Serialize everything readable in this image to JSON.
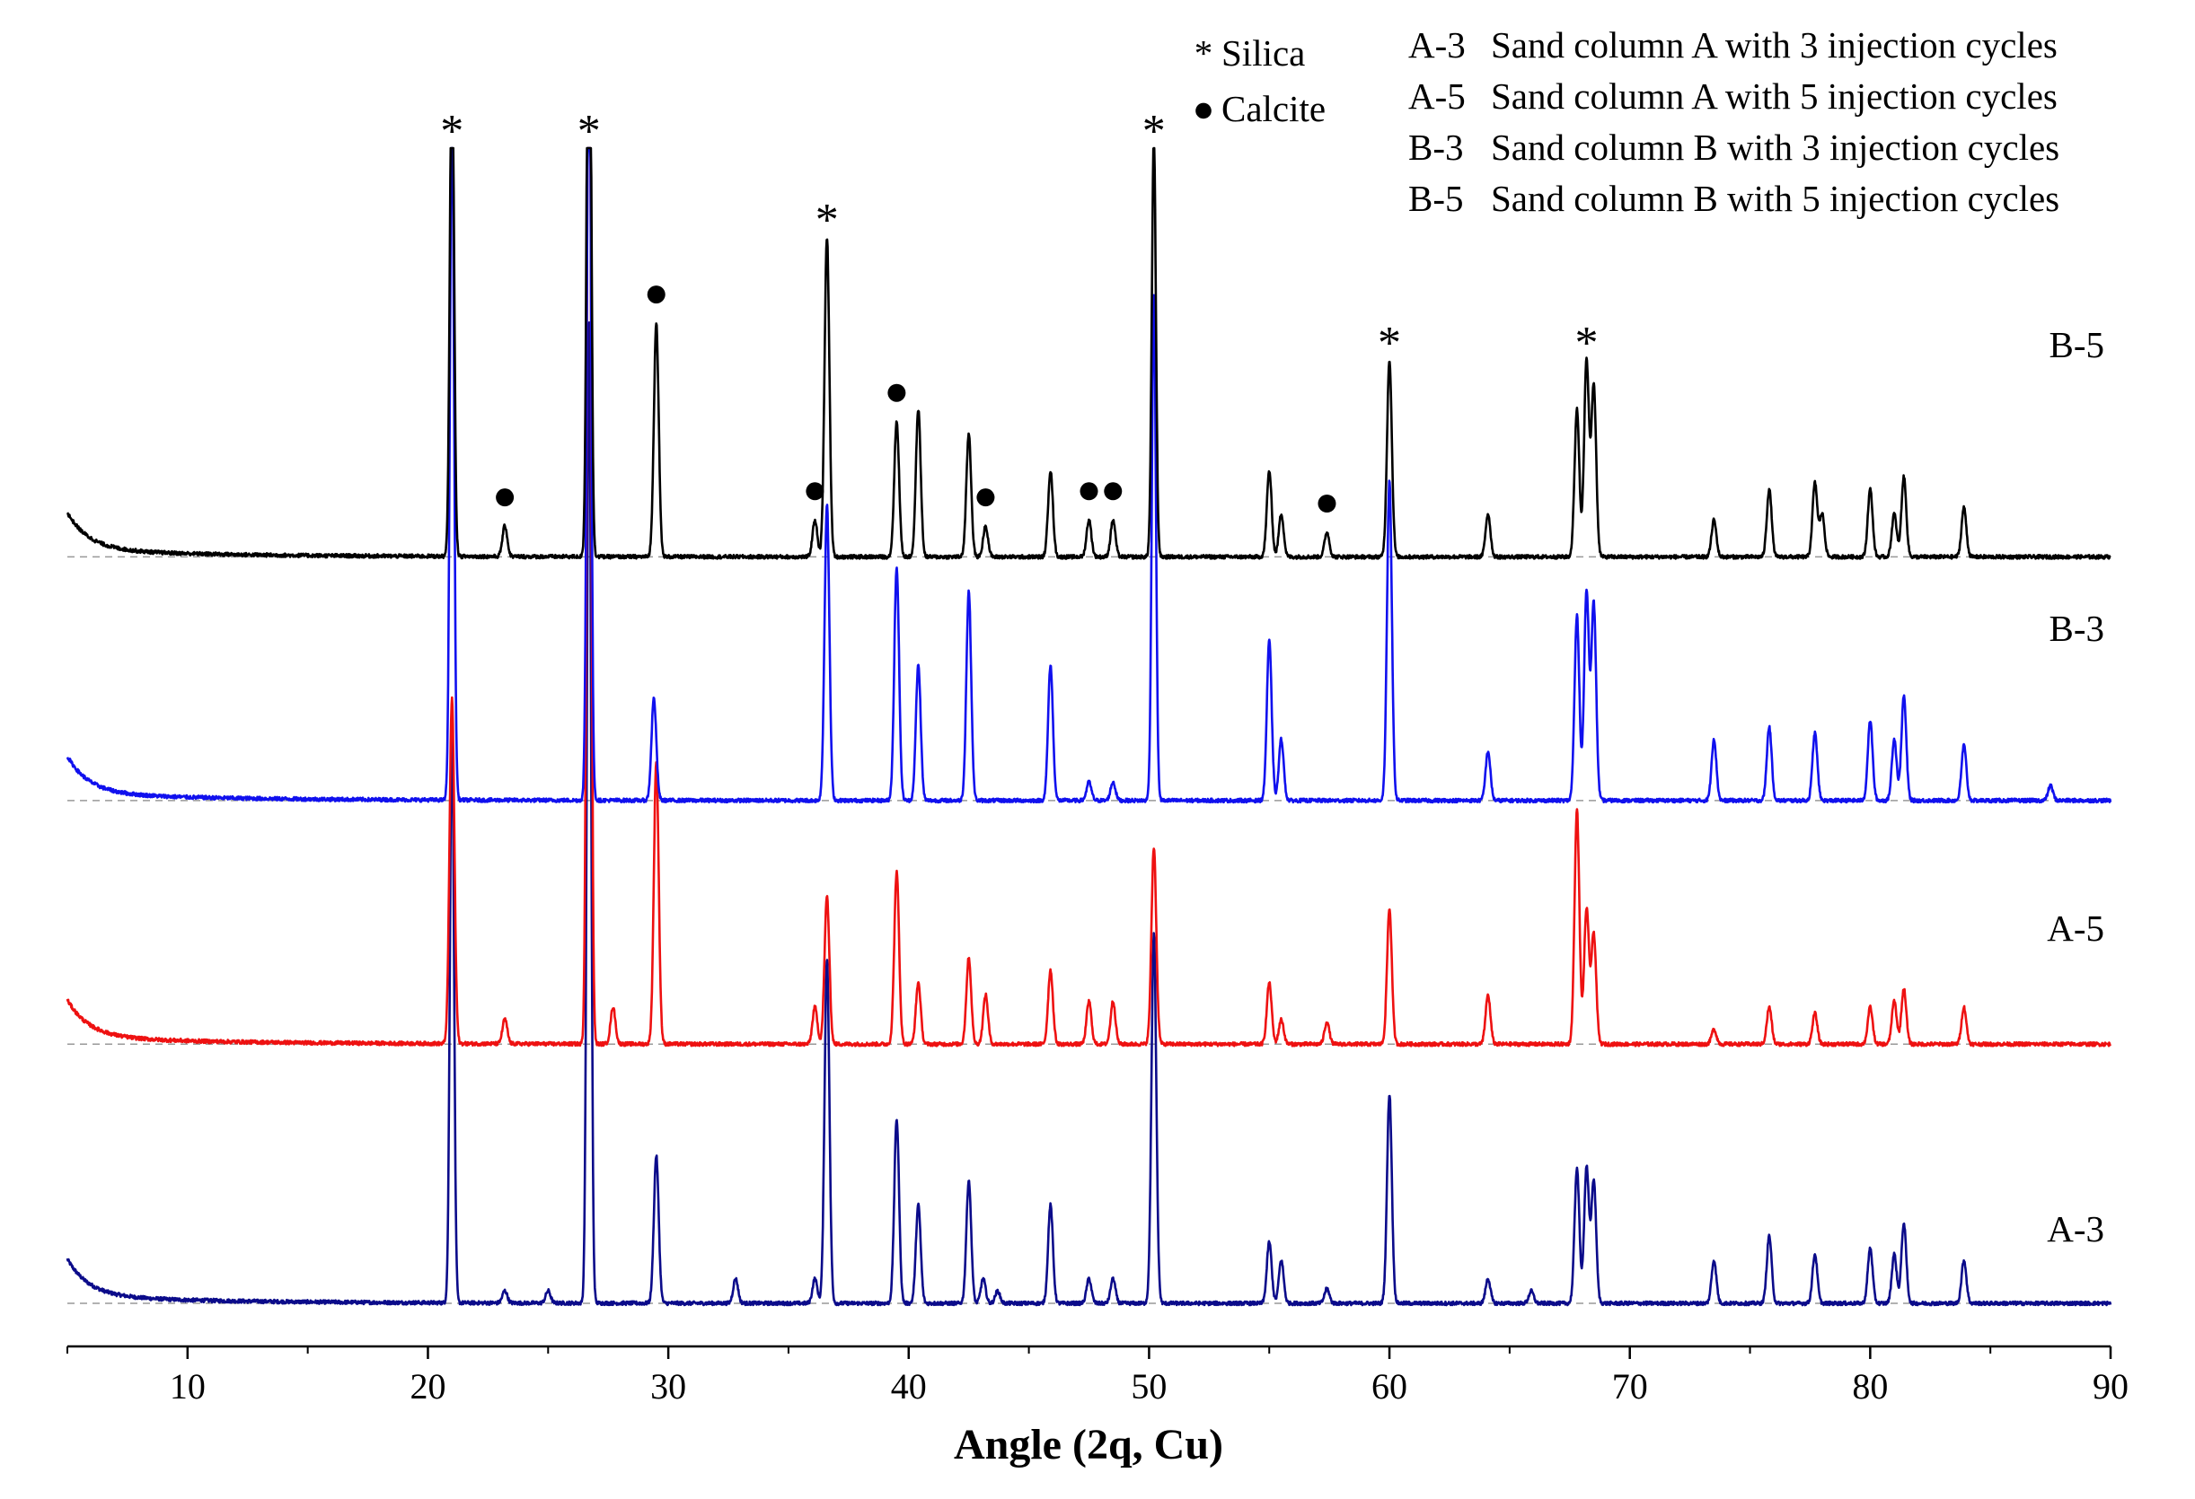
{
  "chart_data": {
    "type": "line",
    "title": "",
    "xlabel": "Angle (2q,  Cu)",
    "ylabel": "",
    "xlim": [
      5,
      90
    ],
    "xticks": [
      10,
      20,
      30,
      40,
      50,
      60,
      70,
      80,
      90
    ],
    "xtick_labels": [
      "10",
      "20",
      "30",
      "40",
      "50",
      "60",
      "70",
      "80",
      "90"
    ],
    "colors": {
      "A-3": "#0b0b8a",
      "A-5": "#ee1111",
      "B-3": "#1010ee",
      "B-5": "#000000",
      "baseline": "#999999"
    },
    "series": [
      {
        "name": "B-5",
        "label": "B-5",
        "offset_norm": 0.72,
        "start_bump": 0.03,
        "peaks": [
          [
            21.0,
            0.43
          ],
          [
            23.2,
            0.025
          ],
          [
            26.7,
            0.6
          ],
          [
            29.5,
            0.19
          ],
          [
            36.1,
            0.03
          ],
          [
            36.6,
            0.26
          ],
          [
            39.5,
            0.11
          ],
          [
            40.4,
            0.12
          ],
          [
            42.5,
            0.1
          ],
          [
            43.2,
            0.025
          ],
          [
            45.9,
            0.07
          ],
          [
            47.5,
            0.03
          ],
          [
            48.5,
            0.03
          ],
          [
            50.2,
            0.34
          ],
          [
            55.0,
            0.07
          ],
          [
            55.5,
            0.035
          ],
          [
            57.4,
            0.02
          ],
          [
            60.0,
            0.16
          ],
          [
            64.1,
            0.035
          ],
          [
            67.8,
            0.12
          ],
          [
            68.2,
            0.16
          ],
          [
            68.5,
            0.14
          ],
          [
            73.5,
            0.03
          ],
          [
            75.8,
            0.055
          ],
          [
            77.7,
            0.06
          ],
          [
            78.0,
            0.035
          ],
          [
            80.0,
            0.055
          ],
          [
            81.4,
            0.065
          ],
          [
            81.0,
            0.035
          ],
          [
            83.9,
            0.04
          ]
        ]
      },
      {
        "name": "B-3",
        "label": "B-3",
        "offset_norm": 0.485,
        "start_bump": 0.03,
        "peaks": [
          [
            21.0,
            0.57
          ],
          [
            26.7,
            0.68
          ],
          [
            29.4,
            0.083
          ],
          [
            36.6,
            0.24
          ],
          [
            39.5,
            0.19
          ],
          [
            40.4,
            0.11
          ],
          [
            42.5,
            0.17
          ],
          [
            45.9,
            0.11
          ],
          [
            47.5,
            0.015
          ],
          [
            48.5,
            0.015
          ],
          [
            50.2,
            0.41
          ],
          [
            55.0,
            0.13
          ],
          [
            55.5,
            0.05
          ],
          [
            60.0,
            0.26
          ],
          [
            64.1,
            0.04
          ],
          [
            67.8,
            0.15
          ],
          [
            68.2,
            0.17
          ],
          [
            68.5,
            0.16
          ],
          [
            73.5,
            0.05
          ],
          [
            75.8,
            0.06
          ],
          [
            77.7,
            0.055
          ],
          [
            80.0,
            0.065
          ],
          [
            81.4,
            0.085
          ],
          [
            81.0,
            0.05
          ],
          [
            83.9,
            0.045
          ],
          [
            87.5,
            0.012
          ]
        ]
      },
      {
        "name": "A-5",
        "label": "A-5",
        "offset_norm": 0.25,
        "start_bump": 0.03,
        "peaks": [
          [
            21.0,
            0.28
          ],
          [
            23.2,
            0.02
          ],
          [
            26.7,
            1.0
          ],
          [
            27.7,
            0.03
          ],
          [
            29.5,
            0.23
          ],
          [
            36.1,
            0.03
          ],
          [
            36.6,
            0.12
          ],
          [
            39.5,
            0.14
          ],
          [
            40.4,
            0.05
          ],
          [
            42.5,
            0.07
          ],
          [
            43.2,
            0.04
          ],
          [
            45.9,
            0.06
          ],
          [
            47.5,
            0.035
          ],
          [
            48.5,
            0.035
          ],
          [
            50.2,
            0.16
          ],
          [
            55.0,
            0.05
          ],
          [
            55.5,
            0.02
          ],
          [
            57.4,
            0.018
          ],
          [
            60.0,
            0.11
          ],
          [
            64.1,
            0.04
          ],
          [
            67.8,
            0.19
          ],
          [
            68.2,
            0.11
          ],
          [
            68.5,
            0.09
          ],
          [
            73.5,
            0.012
          ],
          [
            75.8,
            0.03
          ],
          [
            77.7,
            0.025
          ],
          [
            80.0,
            0.03
          ],
          [
            81.4,
            0.045
          ],
          [
            81.0,
            0.035
          ],
          [
            83.9,
            0.03
          ]
        ]
      },
      {
        "name": "A-3",
        "label": "A-3",
        "offset_norm": 0.0,
        "start_bump": 0.03,
        "peaks": [
          [
            21.0,
            0.47
          ],
          [
            23.2,
            0.01
          ],
          [
            25.0,
            0.01
          ],
          [
            26.7,
            0.8
          ],
          [
            29.5,
            0.12
          ],
          [
            32.8,
            0.02
          ],
          [
            36.1,
            0.02
          ],
          [
            36.6,
            0.28
          ],
          [
            39.5,
            0.15
          ],
          [
            40.4,
            0.08
          ],
          [
            42.5,
            0.1
          ],
          [
            43.1,
            0.02
          ],
          [
            43.7,
            0.01
          ],
          [
            45.9,
            0.08
          ],
          [
            47.5,
            0.02
          ],
          [
            48.5,
            0.02
          ],
          [
            50.2,
            0.3
          ],
          [
            55.0,
            0.05
          ],
          [
            55.5,
            0.035
          ],
          [
            57.4,
            0.012
          ],
          [
            60.0,
            0.17
          ],
          [
            64.1,
            0.02
          ],
          [
            65.9,
            0.01
          ],
          [
            67.8,
            0.11
          ],
          [
            68.2,
            0.11
          ],
          [
            68.5,
            0.1
          ],
          [
            73.5,
            0.035
          ],
          [
            75.8,
            0.055
          ],
          [
            77.7,
            0.04
          ],
          [
            80.0,
            0.045
          ],
          [
            81.4,
            0.065
          ],
          [
            81.0,
            0.04
          ],
          [
            83.9,
            0.035
          ]
        ]
      }
    ],
    "annotations": {
      "silica_angles": [
        21.0,
        26.7,
        36.6,
        50.2,
        60.0,
        68.2
      ],
      "calcite_angles": [
        23.2,
        29.5,
        36.1,
        39.5,
        43.2,
        47.5,
        48.5,
        57.4
      ]
    },
    "legend_markers": [
      {
        "symbol": "*",
        "text": "Silica"
      },
      {
        "symbol": "●",
        "text": "Calcite"
      }
    ],
    "legend_samples": [
      {
        "code": "A-3",
        "desc": "Sand column A with 3 injection cycles"
      },
      {
        "code": "A-5",
        "desc": "Sand column A with 5 injection cycles"
      },
      {
        "code": "B-3",
        "desc": "Sand column B with 3 injection cycles"
      },
      {
        "code": "B-5",
        "desc": "Sand column B with 5 injection cycles"
      }
    ]
  }
}
